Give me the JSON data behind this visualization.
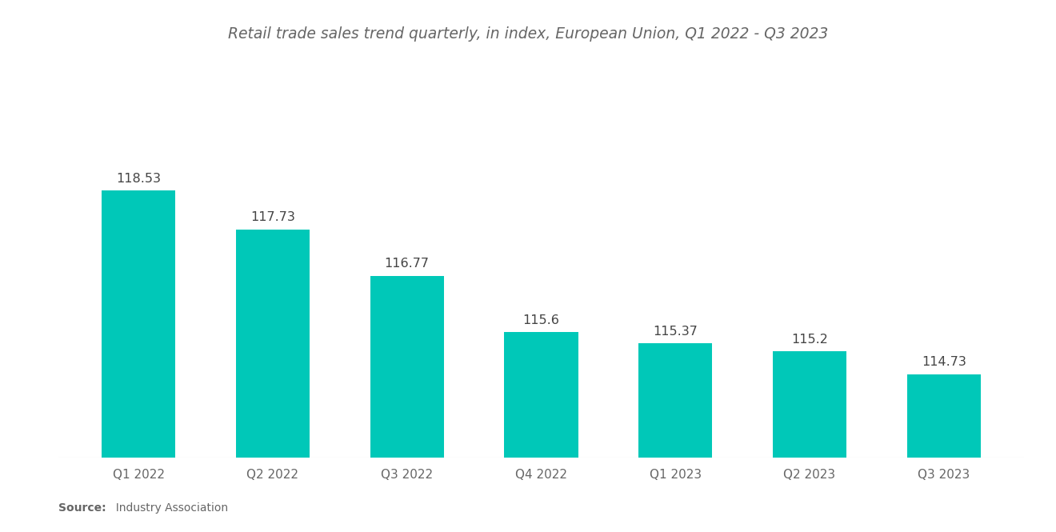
{
  "title": "Retail trade sales trend quarterly, in index, European Union, Q1 2022 - Q3 2023",
  "categories": [
    "Q1 2022",
    "Q2 2022",
    "Q3 2022",
    "Q4 2022",
    "Q1 2023",
    "Q2 2023",
    "Q3 2023"
  ],
  "values": [
    118.53,
    117.73,
    116.77,
    115.6,
    115.37,
    115.2,
    114.73
  ],
  "bar_color": "#00C8B8",
  "background_color": "#ffffff",
  "title_color": "#666666",
  "label_color": "#666666",
  "value_color": "#444444",
  "source_bold": "Source:",
  "source_rest": "  Industry Association",
  "ylim_min": 113.0,
  "ylim_max": 120.5,
  "bar_bottom": 113.0,
  "bar_width": 0.55,
  "title_fontsize": 13.5,
  "tick_fontsize": 11,
  "value_fontsize": 11.5
}
